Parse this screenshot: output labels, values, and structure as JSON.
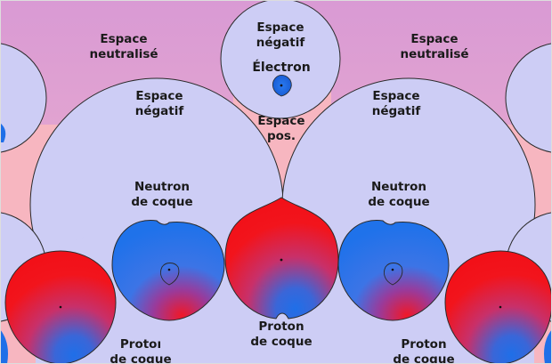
{
  "colors": {
    "background_top": "#d99ad4",
    "background_bottom": "#f5b8c4",
    "negative_space": "#cdcdf5",
    "positive_space": "#f7b6c0",
    "neutron_blue": "#1f6fe8",
    "proton_red": "#f20f17",
    "outline": "#2a2a2a"
  },
  "labels": {
    "neutralized_left": [
      "Espace",
      "neutralisé"
    ],
    "neutralized_right": [
      "Espace",
      "neutralisé"
    ],
    "negative_top": [
      "Espace",
      "négatif"
    ],
    "electron": "Électron",
    "negative_left": [
      "Espace",
      "négatif"
    ],
    "negative_right": [
      "Espace",
      "négatif"
    ],
    "positive_mid": [
      "Espace",
      "pos."
    ],
    "neutron_left": [
      "Neutron",
      "de coque"
    ],
    "neutron_right": [
      "Neutron",
      "de coque"
    ],
    "proton_center": [
      "Proton",
      "de coque"
    ],
    "proton_left": [
      "Protoı",
      "de coque"
    ],
    "proton_right": [
      "Proton",
      "de coque"
    ]
  }
}
